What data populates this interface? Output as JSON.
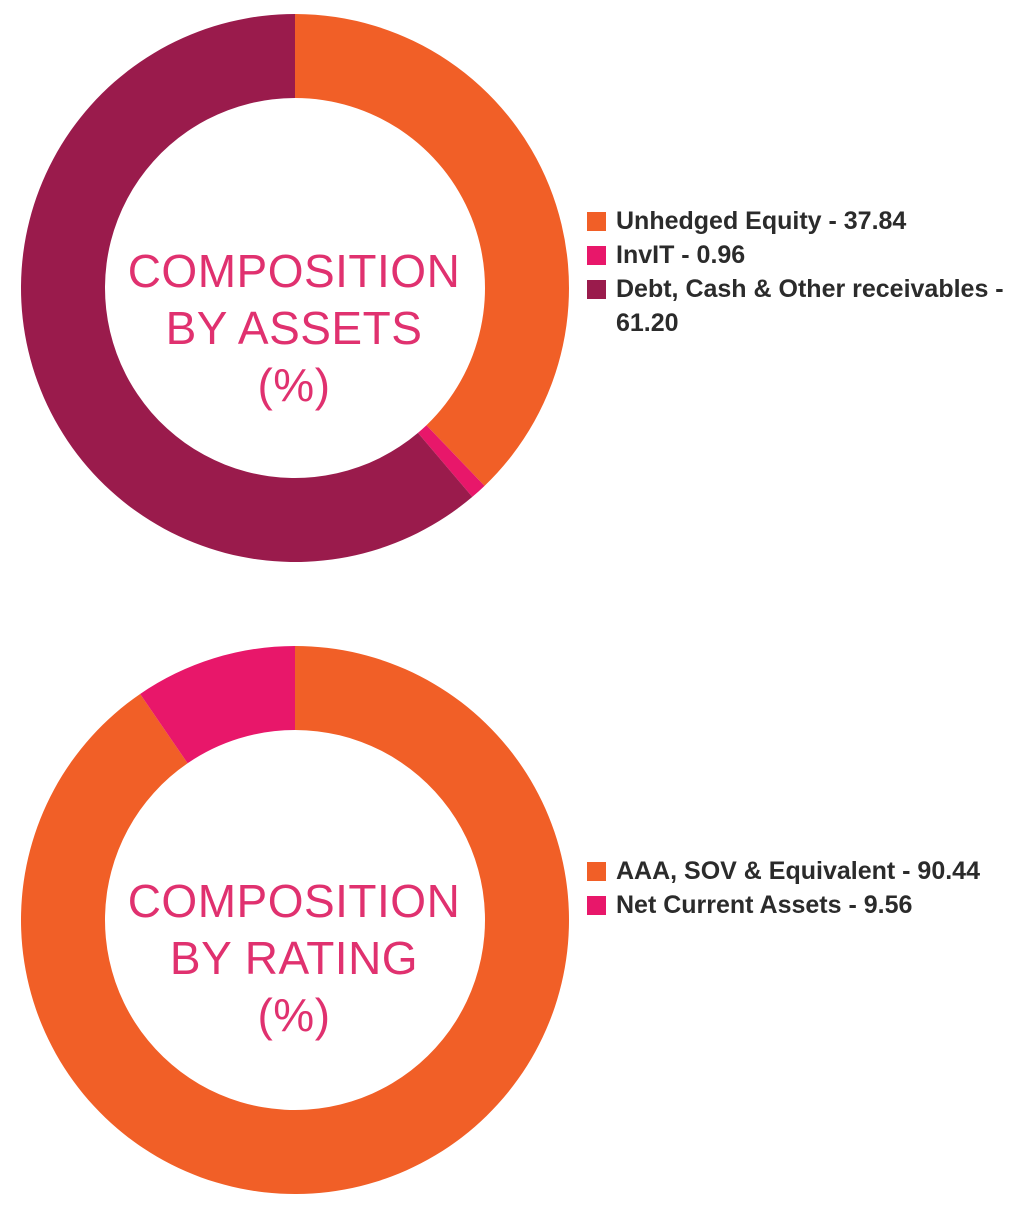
{
  "colors": {
    "orange": "#f15f27",
    "pink": "#e8176a",
    "maroon": "#9a1b4c",
    "title_pink": "#e0316f"
  },
  "chart_data": [
    {
      "type": "pie",
      "donut": true,
      "title_lines": [
        "COMPOSITION",
        "BY ASSETS",
        "(%)"
      ],
      "slices": [
        {
          "label": "Unhedged Equity - 37.84",
          "value": 37.84,
          "color": "#f15f27"
        },
        {
          "label": "InvIT - 0.96",
          "value": 0.96,
          "color": "#e8176a"
        },
        {
          "label": "Debt, Cash & Other receivables - 61.20",
          "value": 61.2,
          "color": "#9a1b4c"
        }
      ],
      "legend_position": "right"
    },
    {
      "type": "pie",
      "donut": true,
      "title_lines": [
        "COMPOSITION",
        "BY RATING",
        "(%)"
      ],
      "slices": [
        {
          "label": "AAA, SOV & Equivalent - 90.44",
          "value": 90.44,
          "color": "#f15f27"
        },
        {
          "label": "Net Current Assets - 9.56",
          "value": 9.56,
          "color": "#e8176a"
        }
      ],
      "legend_position": "right"
    }
  ]
}
